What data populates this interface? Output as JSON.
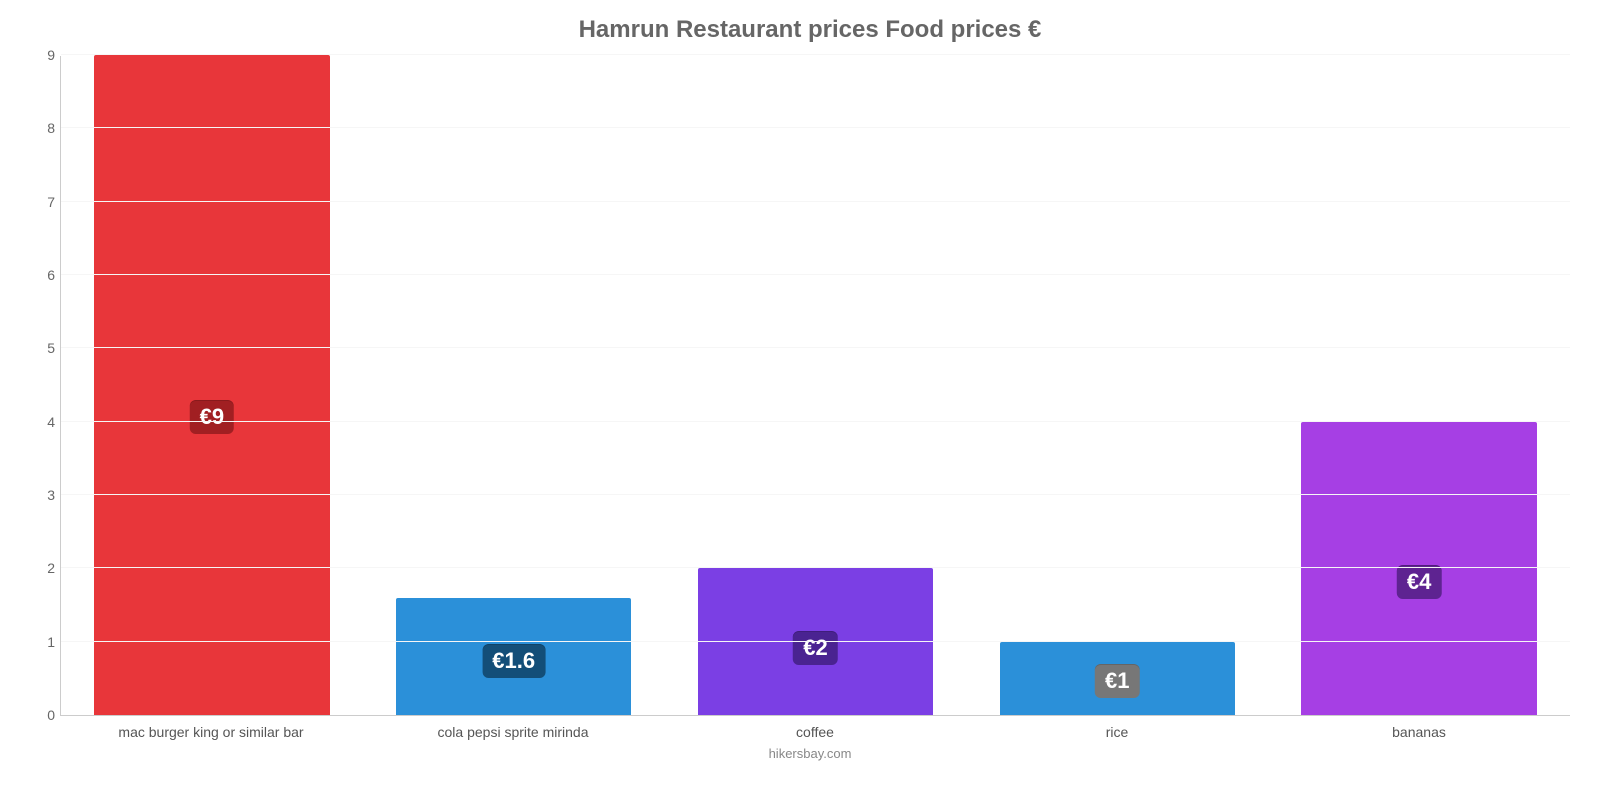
{
  "chart": {
    "type": "bar",
    "title": "Hamrun Restaurant prices Food prices €",
    "title_fontsize": 24,
    "title_color": "#666666",
    "background_color": "#ffffff",
    "grid_color": "#f6f6f6",
    "axis_color": "#cccccc",
    "ylim": [
      0,
      9
    ],
    "yticks": [
      0,
      1,
      2,
      3,
      4,
      5,
      6,
      7,
      8,
      9
    ],
    "label_fontsize": 14,
    "label_color": "#666666",
    "bar_width": 0.78,
    "categories": [
      "mac burger king or similar bar",
      "cola pepsi sprite mirinda",
      "coffee",
      "rice",
      "bananas"
    ],
    "values": [
      9,
      1.6,
      2,
      1,
      4
    ],
    "value_labels": [
      "€9",
      "€1.6",
      "€2",
      "€1",
      "€4"
    ],
    "bar_colors": [
      "#e8363a",
      "#2b90d9",
      "#7b3fe4",
      "#2b90d9",
      "#a63fe4"
    ],
    "value_label_bg": [
      "#a11f22",
      "#134e78",
      "#4a2391",
      "#777777",
      "#5e2391"
    ],
    "value_label_fontsize": 22,
    "value_label_color": "#ffffff",
    "footer": "hikersbay.com"
  }
}
